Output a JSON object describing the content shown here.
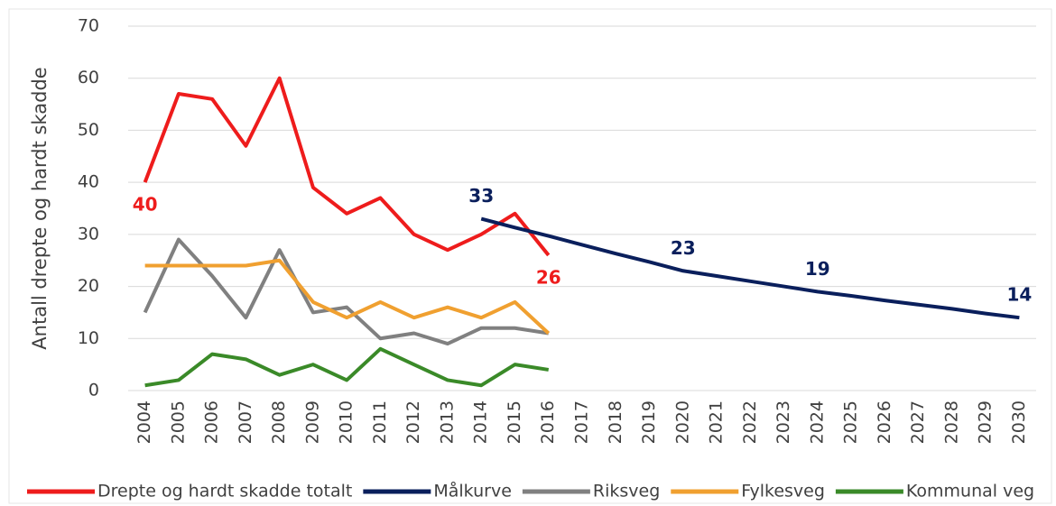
{
  "chart_data": {
    "type": "line",
    "y_label": "Antall drepte og hardt skadde",
    "categories": [
      "2004",
      "2005",
      "2006",
      "2007",
      "2008",
      "2009",
      "2010",
      "2011",
      "2012",
      "2013",
      "2014",
      "2015",
      "2016",
      "2017",
      "2018",
      "2019",
      "2020",
      "2021",
      "2022",
      "2023",
      "2024",
      "2025",
      "2026",
      "2027",
      "2028",
      "2029",
      "2030"
    ],
    "series": [
      {
        "name": "Drepte og hardt skadde totalt",
        "color": "#ee1c1c",
        "values": [
          40,
          57,
          56,
          47,
          60,
          39,
          34,
          37,
          30,
          27,
          30,
          34,
          26,
          null,
          null,
          null,
          null,
          null,
          null,
          null,
          null,
          null,
          null,
          null,
          null,
          null,
          null
        ],
        "value_labels": [
          "40",
          null,
          null,
          null,
          null,
          null,
          null,
          null,
          null,
          null,
          null,
          null,
          "26",
          null,
          null,
          null,
          null,
          null,
          null,
          null,
          null,
          null,
          null,
          null,
          null,
          null,
          null
        ]
      },
      {
        "name": "Målkurve",
        "color": "#0a1f5c",
        "values": [
          null,
          null,
          null,
          null,
          null,
          null,
          null,
          null,
          null,
          null,
          33,
          31.3,
          29.7,
          28,
          26.3,
          24.7,
          23,
          22,
          21,
          20,
          19,
          18.2,
          17.3,
          16.5,
          15.7,
          14.8,
          14
        ],
        "value_labels": [
          null,
          null,
          null,
          null,
          null,
          null,
          null,
          null,
          null,
          null,
          "33",
          null,
          null,
          null,
          null,
          null,
          "23",
          null,
          null,
          null,
          "19",
          null,
          null,
          null,
          null,
          null,
          "14"
        ]
      },
      {
        "name": "Riksveg",
        "color": "#808080",
        "values": [
          15,
          29,
          22,
          14,
          27,
          15,
          16,
          10,
          11,
          9,
          12,
          12,
          11,
          null,
          null,
          null,
          null,
          null,
          null,
          null,
          null,
          null,
          null,
          null,
          null,
          null,
          null
        ]
      },
      {
        "name": "Fylkesveg",
        "color": "#f0a030",
        "values": [
          24,
          24,
          24,
          24,
          25,
          17,
          14,
          17,
          14,
          16,
          14,
          17,
          11,
          null,
          null,
          null,
          null,
          null,
          null,
          null,
          null,
          null,
          null,
          null,
          null,
          null,
          null
        ]
      },
      {
        "name": "Kommunal veg",
        "color": "#3a8a28",
        "values": [
          1,
          2,
          7,
          6,
          3,
          5,
          2,
          8,
          5,
          2,
          1,
          5,
          4,
          null,
          null,
          null,
          null,
          null,
          null,
          null,
          null,
          null,
          null,
          null,
          null,
          null,
          null
        ]
      }
    ],
    "ylim": [
      0,
      70
    ],
    "yticks": [
      0,
      10,
      20,
      30,
      40,
      50,
      60,
      70
    ],
    "grid": true,
    "legend": "bottom"
  }
}
